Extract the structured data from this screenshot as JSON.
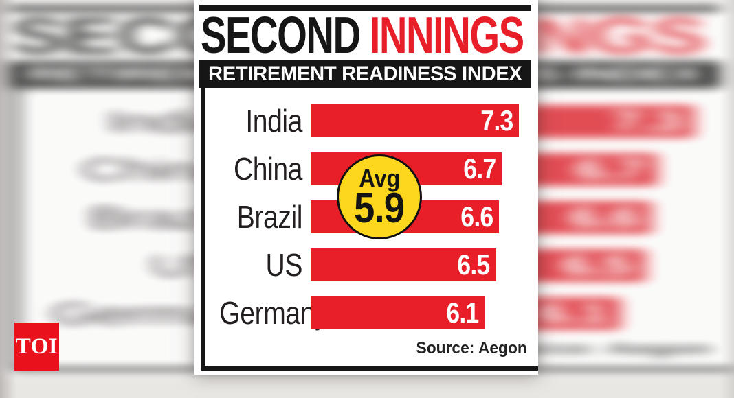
{
  "theme": {
    "red": "#e81e28",
    "yellow": "#fcd71e",
    "ink": "#161616",
    "card_bg": "#ffffff",
    "logo_red": "#e8111c"
  },
  "header": {
    "title_black": "SECOND ",
    "title_red": "INNINGS",
    "subtitle": "RETIREMENT READINESS INDEX"
  },
  "chart_data": {
    "type": "bar",
    "orientation": "horizontal",
    "title": "SECOND INNINGS",
    "subtitle": "RETIREMENT READINESS INDEX",
    "categories": [
      "India",
      "China",
      "Brazil",
      "US",
      "Germany"
    ],
    "values": [
      7.3,
      6.7,
      6.6,
      6.5,
      6.1
    ],
    "xlim": [
      0,
      7.3
    ],
    "grid": false,
    "legend": "none",
    "bar_color": "#e81e28",
    "value_label_color": "#ffffff",
    "annotations": [
      {
        "label": "Avg",
        "value": "5.9",
        "style": "yellow-circle-badge"
      }
    ],
    "source": "Source: Aegon"
  },
  "average_badge": {
    "label": "Avg",
    "value": "5.9"
  },
  "footer": {
    "source": "Source: Aegon"
  },
  "logo": {
    "text": "TOI"
  }
}
